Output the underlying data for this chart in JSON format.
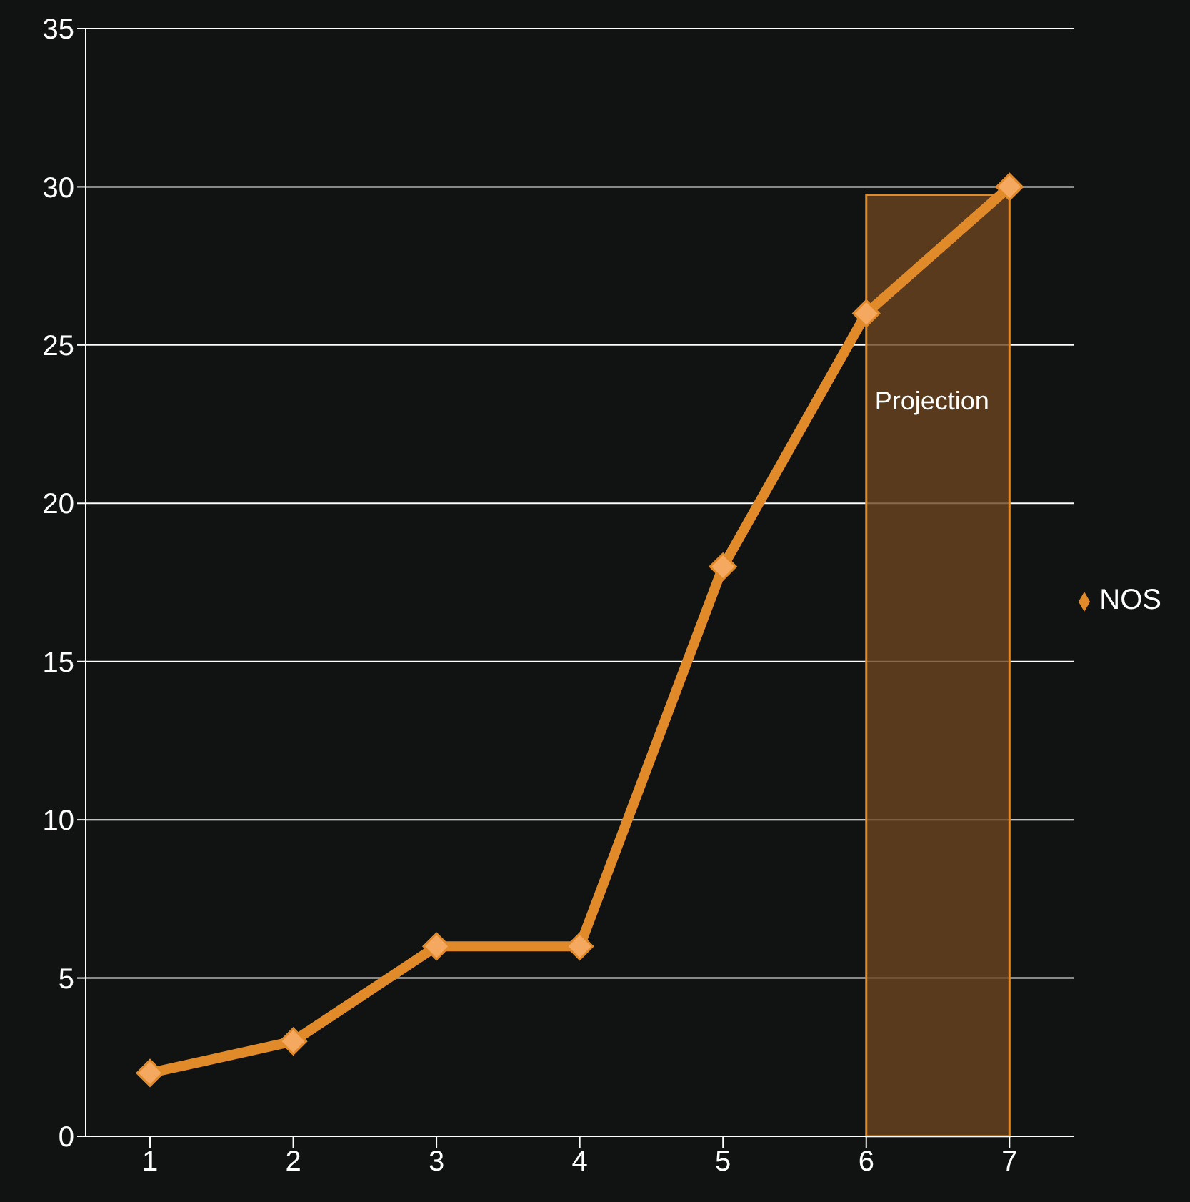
{
  "chart_data": {
    "type": "line",
    "categories": [
      "1",
      "2",
      "3",
      "4",
      "5",
      "6",
      "7"
    ],
    "series": [
      {
        "name": "NOS",
        "color": "#e08a2a",
        "values": [
          2,
          3,
          6,
          6,
          18,
          26,
          30
        ]
      }
    ],
    "ylim": [
      0,
      35
    ],
    "yticks": [
      0,
      5,
      10,
      15,
      20,
      25,
      30,
      35
    ],
    "grid": "y",
    "legend": "right",
    "marker": "diamond",
    "line_style": "solid",
    "bands": [
      {
        "axis": "x",
        "from": "6",
        "to": "7",
        "label": "Projection",
        "color": "#6b4520"
      }
    ]
  }
}
